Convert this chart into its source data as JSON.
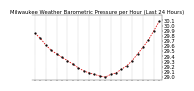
{
  "title": "Milwaukee Weather Barometric Pressure per Hour (Last 24 Hours)",
  "hours": [
    0,
    1,
    2,
    3,
    4,
    5,
    6,
    7,
    8,
    9,
    10,
    11,
    12,
    13,
    14,
    15,
    16,
    17,
    18,
    19,
    20,
    21,
    22,
    23
  ],
  "pressure": [
    29.85,
    29.75,
    29.62,
    29.52,
    29.45,
    29.38,
    29.32,
    29.25,
    29.18,
    29.12,
    29.08,
    29.05,
    29.02,
    29.0,
    29.05,
    29.08,
    29.15,
    29.22,
    29.32,
    29.45,
    29.58,
    29.72,
    29.9,
    30.08
  ],
  "line_color": "#dd0000",
  "marker_color": "#000000",
  "bg_color": "#ffffff",
  "grid_color": "#999999",
  "ylim": [
    28.95,
    30.2
  ],
  "yticks": [
    29.0,
    29.1,
    29.2,
    29.3,
    29.4,
    29.5,
    29.6,
    29.7,
    29.8,
    29.9,
    30.0,
    30.1
  ],
  "ylabel_fontsize": 3.8,
  "title_fontsize": 3.8
}
